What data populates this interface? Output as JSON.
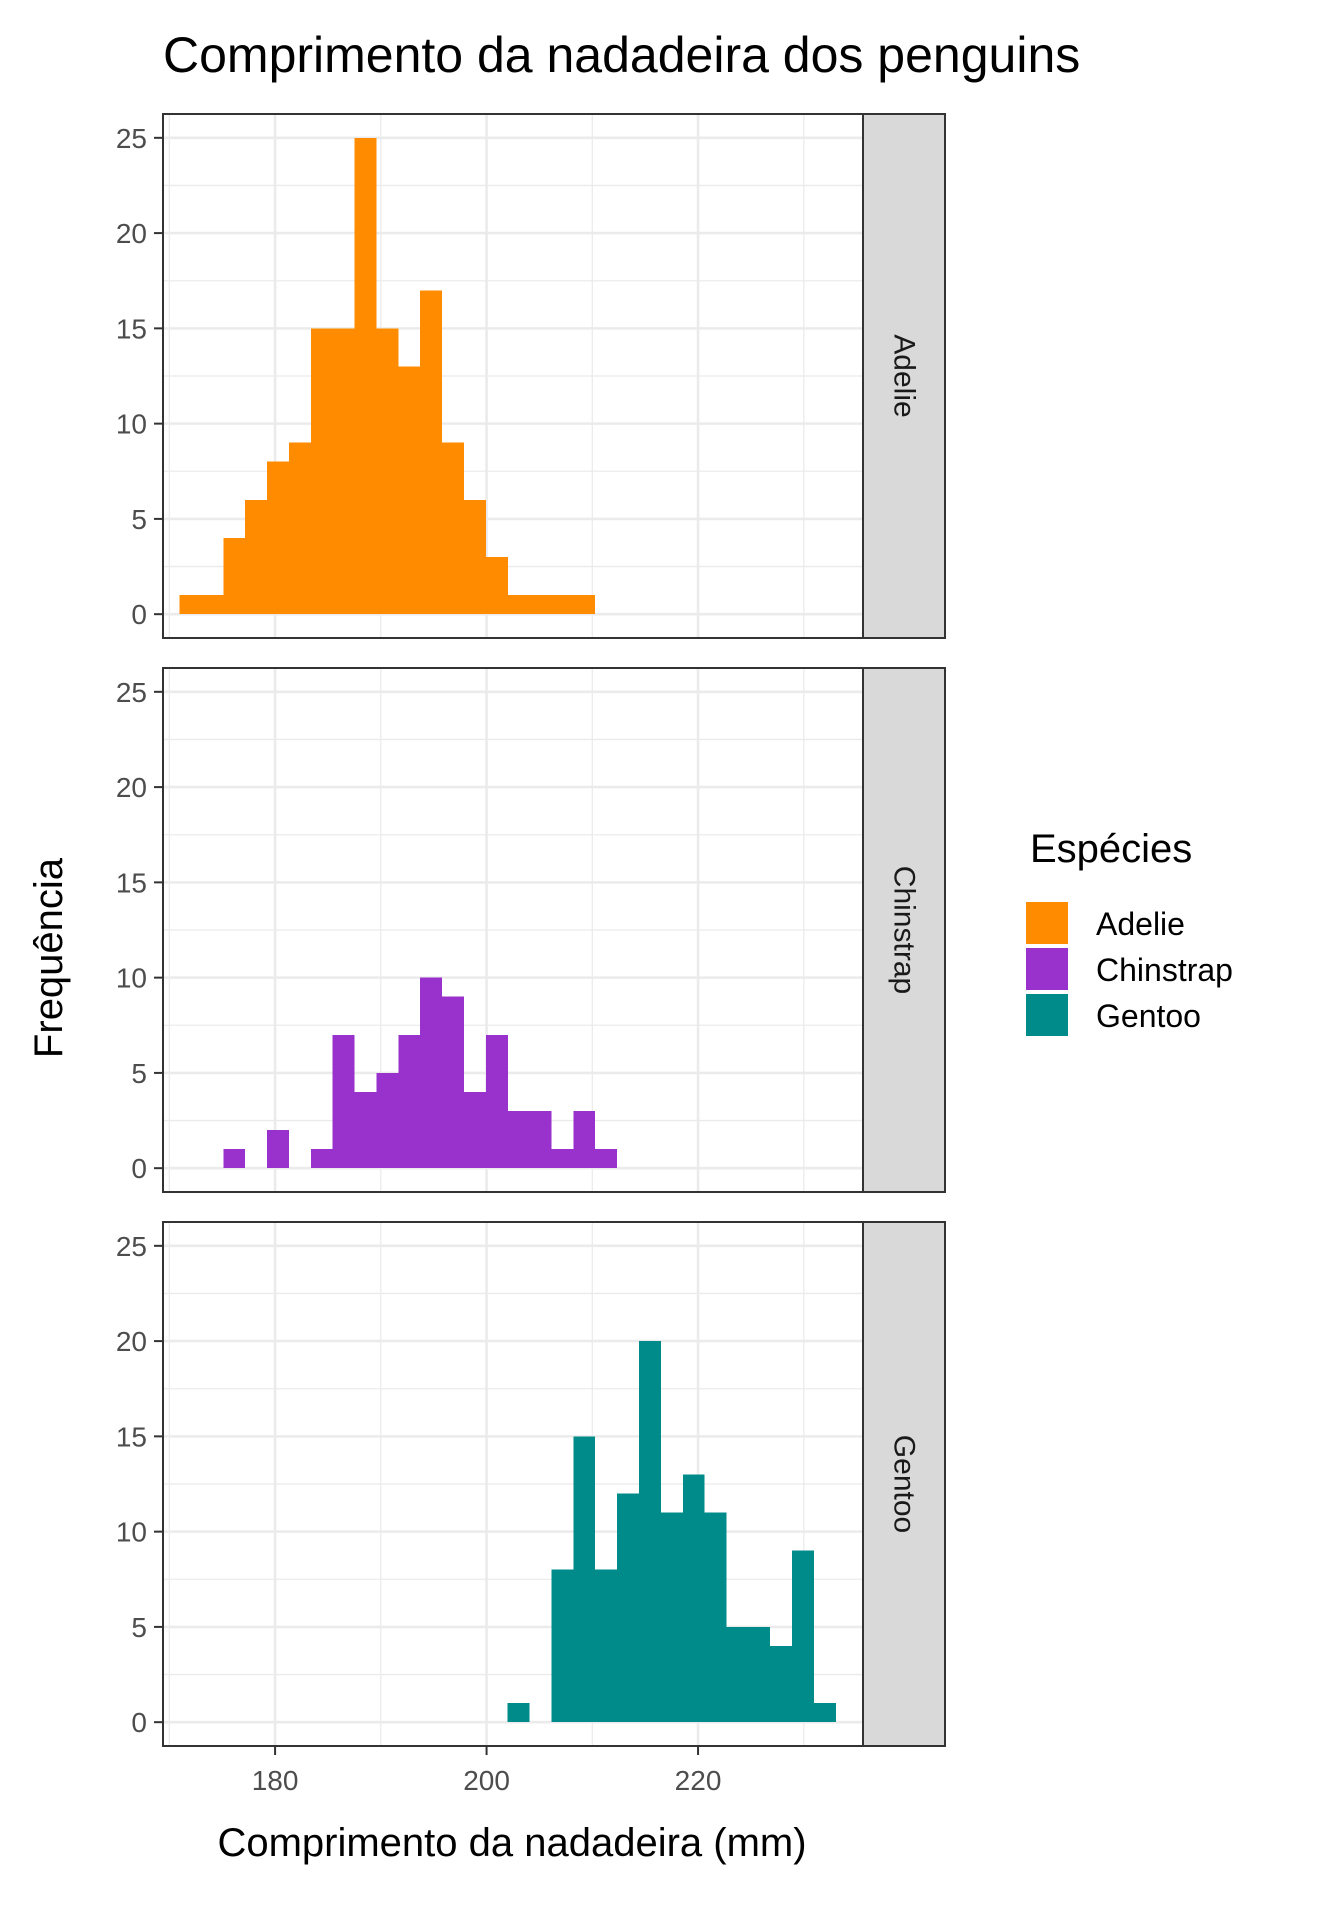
{
  "chart_data": {
    "type": "bar",
    "title": "Comprimento da nadadeira dos penguins",
    "xlabel": "Comprimento da nadadeira (mm)",
    "ylabel": "Frequência",
    "xlim": [
      169.4,
      235.6
    ],
    "ylim": [
      -1.25,
      26.25
    ],
    "x_ticks": [
      180,
      200,
      220
    ],
    "y_ticks": [
      0,
      5,
      10,
      15,
      20,
      25
    ],
    "grid": true,
    "bin_width": 2.07,
    "bin_centers": [
      172.0,
      174.07,
      176.14,
      178.21,
      180.28,
      182.34,
      184.41,
      186.48,
      188.55,
      190.62,
      192.69,
      194.76,
      196.83,
      198.9,
      200.97,
      203.03,
      205.1,
      207.17,
      209.24,
      211.31,
      213.38,
      215.45,
      217.52,
      219.59,
      221.66,
      223.72,
      225.79,
      227.86,
      229.93,
      232.0
    ],
    "legend": {
      "title": "Espécies",
      "position": "right"
    },
    "series": [
      {
        "name": "Adelie",
        "color": "#FF8C00",
        "values": [
          1,
          1,
          4,
          6,
          8,
          9,
          15,
          15,
          25,
          15,
          13,
          17,
          9,
          6,
          3,
          1,
          1,
          1,
          1,
          0,
          0,
          0,
          0,
          0,
          0,
          0,
          0,
          0,
          0,
          0
        ]
      },
      {
        "name": "Chinstrap",
        "color": "#9932CC",
        "values": [
          0,
          0,
          1,
          0,
          2,
          0,
          1,
          7,
          4,
          5,
          7,
          10,
          9,
          4,
          7,
          3,
          3,
          1,
          3,
          1,
          0,
          0,
          0,
          0,
          0,
          0,
          0,
          0,
          0,
          0
        ]
      },
      {
        "name": "Gentoo",
        "color": "#008B8B",
        "values": [
          0,
          0,
          0,
          0,
          0,
          0,
          0,
          0,
          0,
          0,
          0,
          0,
          0,
          0,
          0,
          1,
          0,
          8,
          15,
          8,
          12,
          20,
          11,
          13,
          11,
          5,
          5,
          4,
          9,
          1
        ]
      }
    ]
  }
}
